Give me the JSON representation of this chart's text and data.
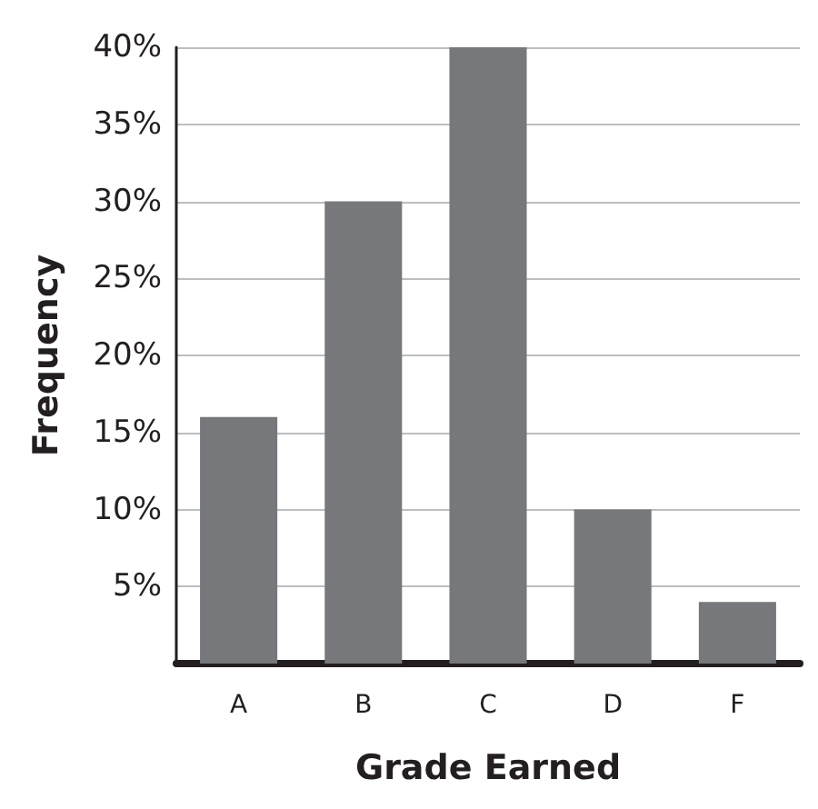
{
  "chart_data": {
    "type": "bar",
    "xlabel": "Grade Earned",
    "ylabel": "Frequency",
    "categories": [
      "A",
      "B",
      "C",
      "D",
      "F"
    ],
    "values": [
      16,
      30,
      40,
      10,
      4
    ],
    "color": "#77787b",
    "ylim": [
      0,
      40
    ],
    "yticks": [
      {
        "value": 5,
        "label": "5%"
      },
      {
        "value": 10,
        "label": "10%"
      },
      {
        "value": 15,
        "label": "15%"
      },
      {
        "value": 20,
        "label": "20%"
      },
      {
        "value": 25,
        "label": "25%"
      },
      {
        "value": 30,
        "label": "30%"
      },
      {
        "value": 35,
        "label": "35%"
      },
      {
        "value": 40,
        "label": "40%"
      }
    ],
    "grid": "y"
  }
}
